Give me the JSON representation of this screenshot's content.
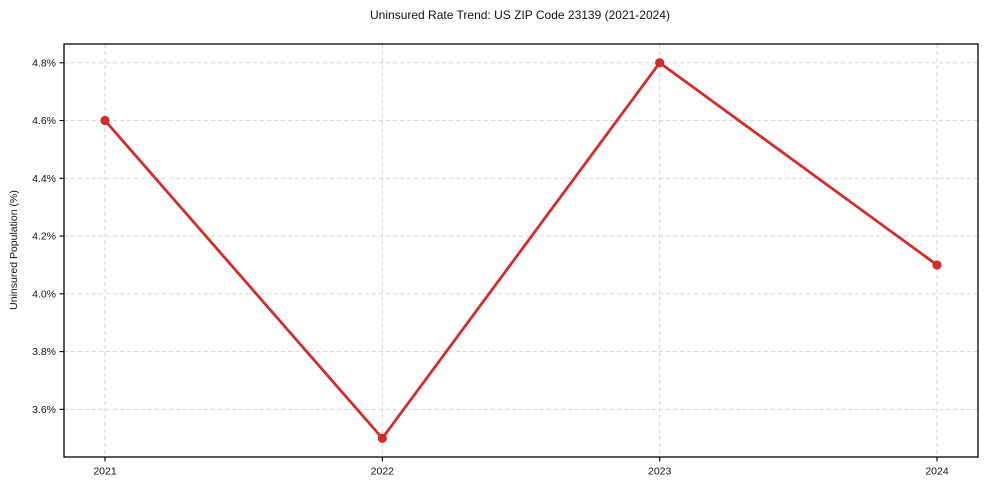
{
  "chart_data": {
    "type": "line",
    "title": "Uninsured Rate Trend: US ZIP Code 23139 (2021-2024)",
    "xlabel": "",
    "ylabel": "Uninsured Population (%)",
    "x": [
      2021,
      2022,
      2023,
      2024
    ],
    "xtick_labels": [
      "2021",
      "2022",
      "2023",
      "2024"
    ],
    "series": [
      {
        "name": "Uninsured Population (%)",
        "values": [
          4.6,
          3.5,
          4.8,
          4.1
        ]
      }
    ],
    "yticks": [
      3.6,
      3.8,
      4.0,
      4.2,
      4.4,
      4.6,
      4.8
    ],
    "ytick_labels": [
      "3.6%",
      "3.8%",
      "4.0%",
      "4.2%",
      "4.4%",
      "4.6%",
      "4.8%"
    ],
    "ylim": [
      3.435,
      4.865
    ],
    "grid": true,
    "grid_style": "dashed",
    "legend": "none",
    "line_color": "#d62b2b",
    "marker": "circle"
  }
}
